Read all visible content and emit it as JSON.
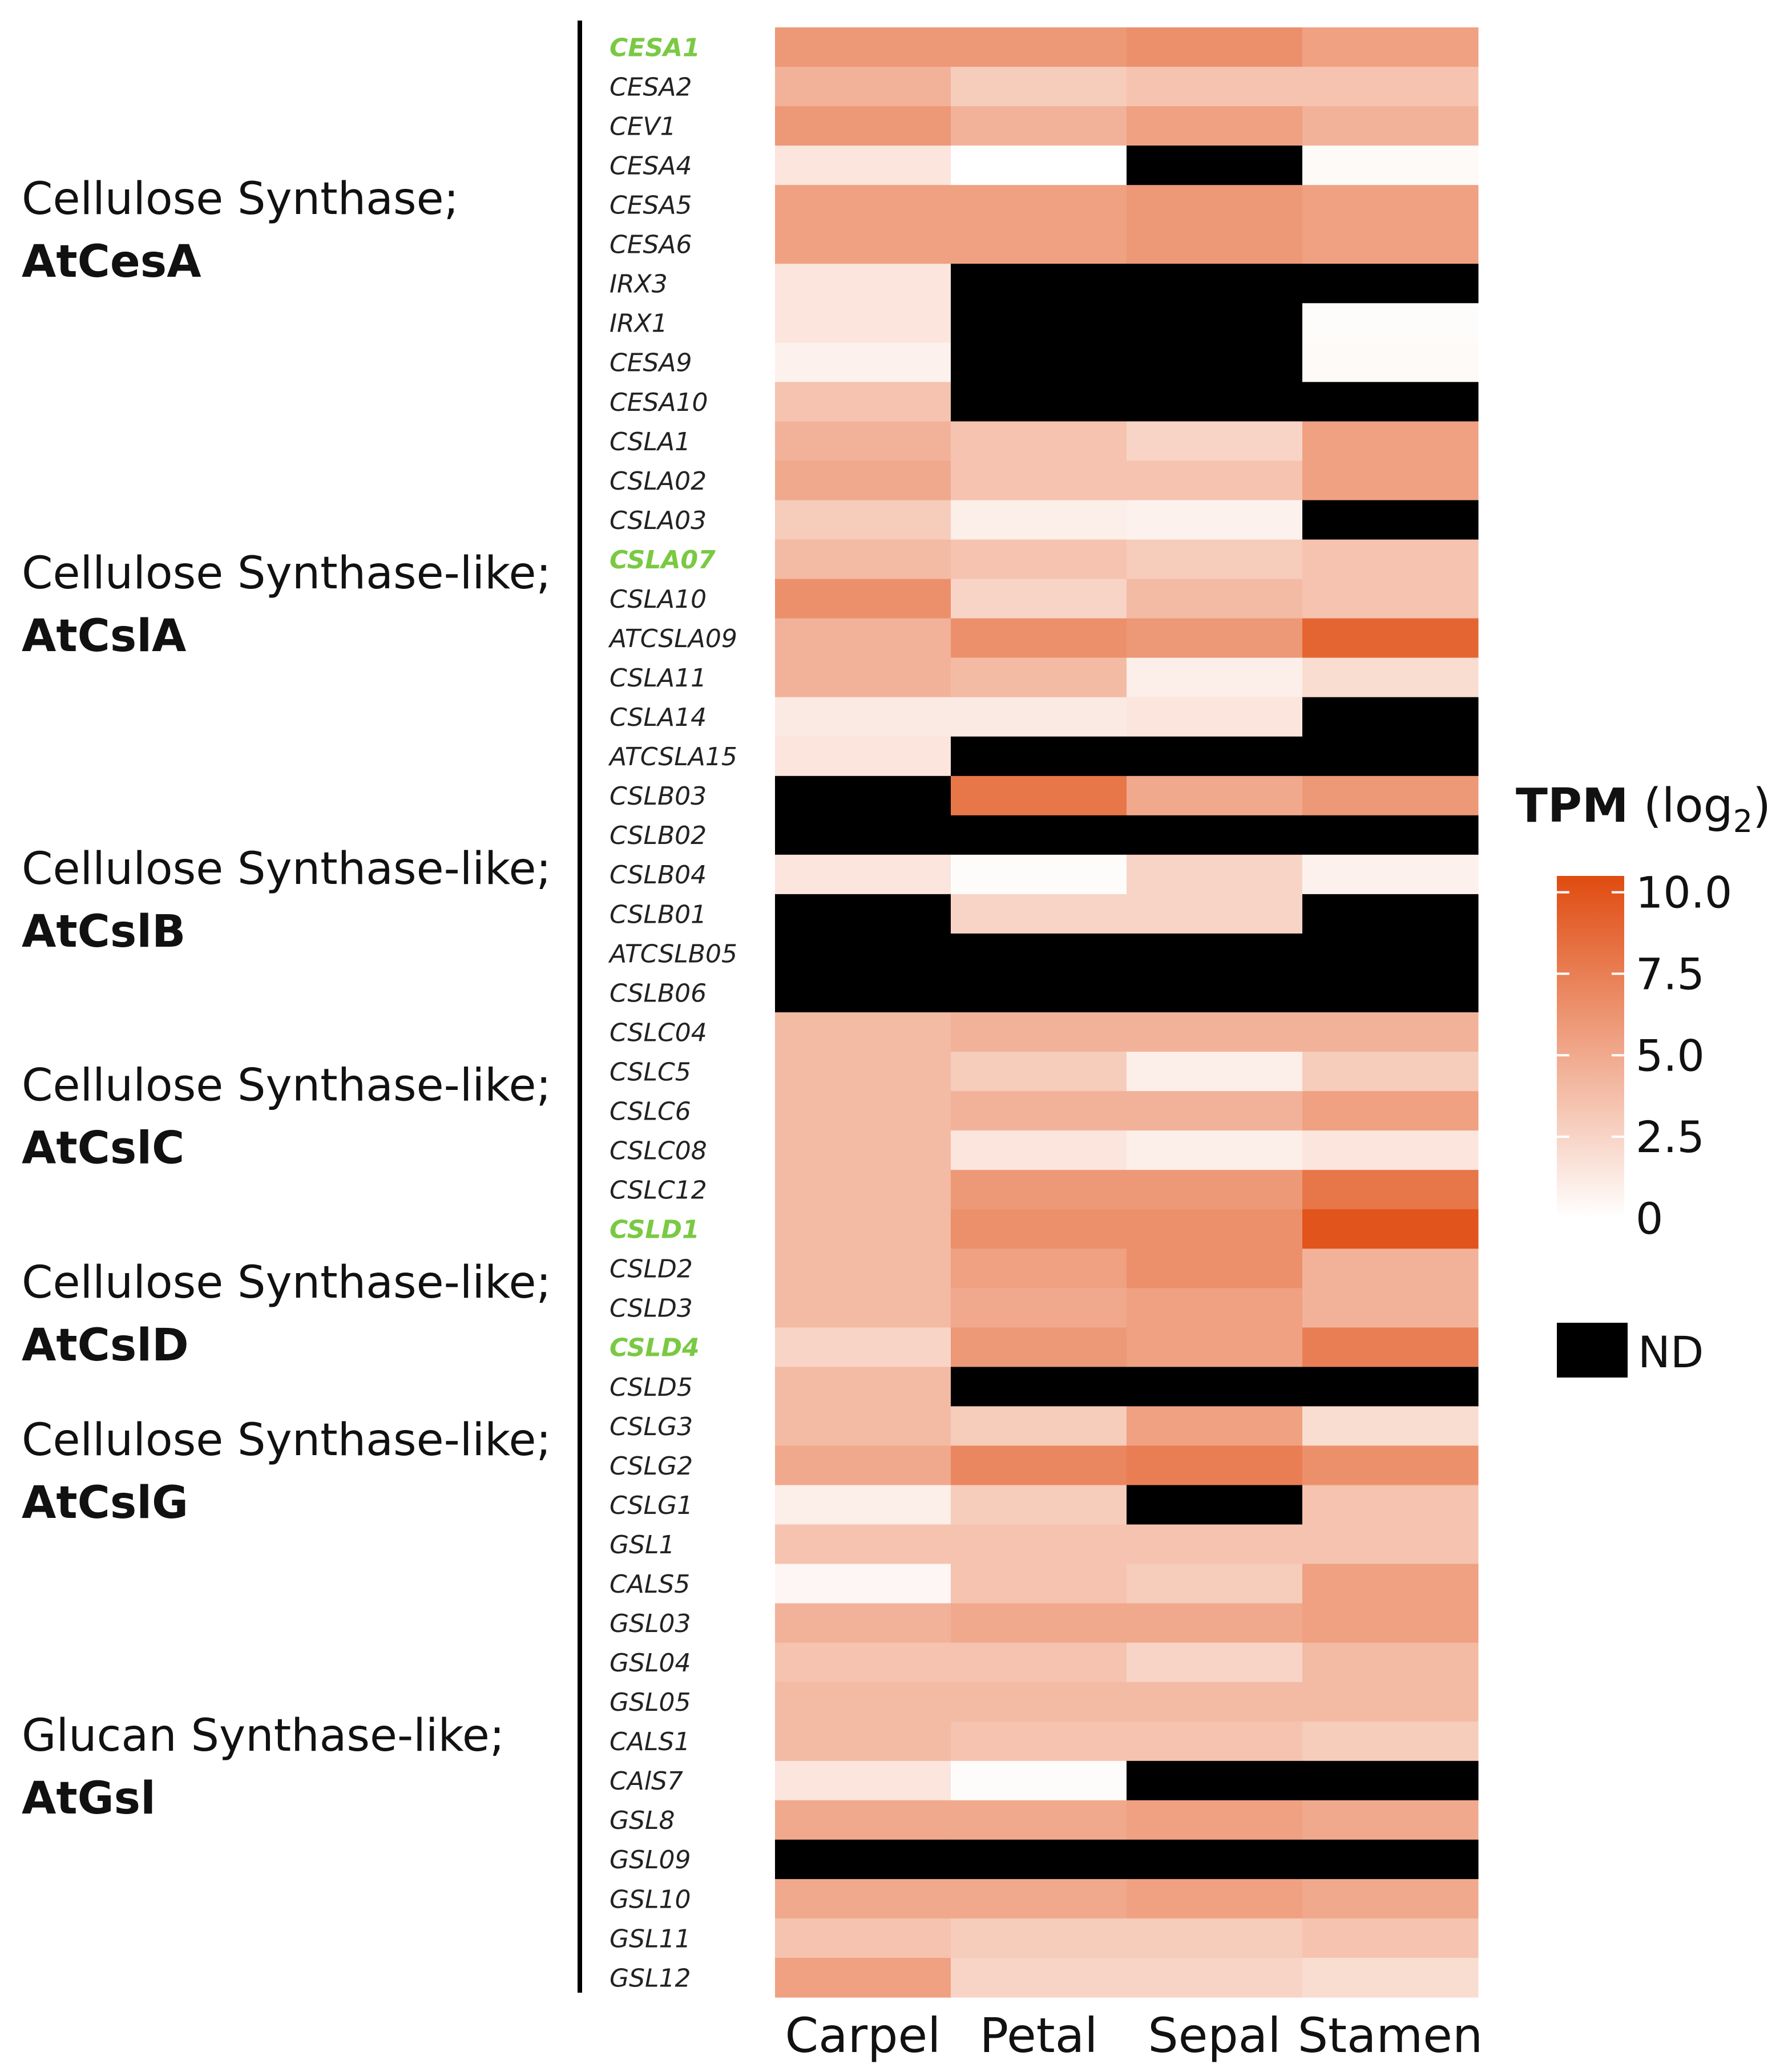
{
  "chart_data": {
    "type": "heatmap",
    "x_categories": [
      "Carpel",
      "Petal",
      "Sepal",
      "Stamen"
    ],
    "legend": {
      "title_main": "TPM",
      "title_suffix": " (log",
      "title_sub": "2",
      "title_close": ")",
      "ticks": [
        10.0,
        7.5,
        5.0,
        2.5,
        0
      ],
      "tick_labels": [
        "10.0",
        "7.5",
        "5.0",
        "2.5",
        "0"
      ],
      "range": [
        0,
        10.5
      ],
      "nd_label": "ND",
      "placement": "right"
    },
    "colors": {
      "low": "#ffffff",
      "high": "#e04b10",
      "nd": "#000000",
      "highlight_text": "#7ac943",
      "text": "#222222"
    },
    "groups": [
      {
        "line1": "Cellulose Synthase;",
        "line2": "AtCesA",
        "start": 0,
        "end": 9
      },
      {
        "line1": "Cellulose Synthase-like;",
        "line2": "AtCslA",
        "start": 10,
        "end": 18
      },
      {
        "line1": "Cellulose Synthase-like;",
        "line2": "AtCslB",
        "start": 19,
        "end": 24
      },
      {
        "line1": "Cellulose Synthase-like;",
        "line2": "AtCslC",
        "start": 25,
        "end": 29
      },
      {
        "line1": "Cellulose Synthase-like;",
        "line2": "AtCslD",
        "start": 30,
        "end": 34
      },
      {
        "line1": "Cellulose Synthase-like;",
        "line2": "AtCslG",
        "start": 35,
        "end": 37
      },
      {
        "line1": "Glucan Synthase-like;",
        "line2": "AtGsl",
        "start": 38,
        "end": 49
      }
    ],
    "rows": [
      {
        "gene": "CESA1",
        "highlight": true,
        "values": [
          6.0,
          6.0,
          6.5,
          5.5
        ]
      },
      {
        "gene": "CESA2",
        "highlight": false,
        "values": [
          4.5,
          3.0,
          3.5,
          3.5
        ]
      },
      {
        "gene": "CEV1",
        "highlight": false,
        "values": [
          6.0,
          4.5,
          5.5,
          4.5
        ]
      },
      {
        "gene": "CESA4",
        "highlight": false,
        "values": [
          1.5,
          0.0,
          null,
          0.3
        ]
      },
      {
        "gene": "CESA5",
        "highlight": false,
        "values": [
          5.5,
          5.5,
          6.0,
          5.5
        ]
      },
      {
        "gene": "CESA6",
        "highlight": false,
        "values": [
          5.5,
          5.5,
          6.0,
          5.5
        ]
      },
      {
        "gene": "IRX3",
        "highlight": false,
        "values": [
          1.5,
          null,
          null,
          null
        ]
      },
      {
        "gene": "IRX1",
        "highlight": false,
        "values": [
          1.5,
          null,
          null,
          0.2
        ]
      },
      {
        "gene": "CESA9",
        "highlight": false,
        "values": [
          0.8,
          null,
          null,
          0.3
        ]
      },
      {
        "gene": "CESA10",
        "highlight": false,
        "values": [
          3.5,
          null,
          null,
          null
        ]
      },
      {
        "gene": "CSLA1",
        "highlight": false,
        "values": [
          4.5,
          3.5,
          2.5,
          5.5
        ]
      },
      {
        "gene": "CSLA02",
        "highlight": false,
        "values": [
          5.0,
          3.5,
          3.5,
          5.5
        ]
      },
      {
        "gene": "CSLA03",
        "highlight": false,
        "values": [
          3.0,
          1.0,
          0.8,
          null
        ]
      },
      {
        "gene": "CSLA07",
        "highlight": true,
        "values": [
          4.0,
          3.5,
          3.0,
          3.5
        ]
      },
      {
        "gene": "CSLA10",
        "highlight": false,
        "values": [
          6.5,
          2.5,
          4.0,
          3.5
        ]
      },
      {
        "gene": "ATCSLA09",
        "highlight": false,
        "values": [
          4.5,
          6.5,
          6.0,
          9.0
        ]
      },
      {
        "gene": "CSLA11",
        "highlight": false,
        "values": [
          4.5,
          4.0,
          1.0,
          2.0
        ]
      },
      {
        "gene": "CSLA14",
        "highlight": false,
        "values": [
          1.2,
          1.2,
          1.5,
          null
        ]
      },
      {
        "gene": "ATCSLA15",
        "highlight": false,
        "values": [
          1.5,
          null,
          null,
          null
        ]
      },
      {
        "gene": "CSLB03",
        "highlight": false,
        "values": [
          null,
          8.0,
          5.0,
          6.0
        ]
      },
      {
        "gene": "CSLB02",
        "highlight": false,
        "values": [
          null,
          null,
          null,
          null
        ]
      },
      {
        "gene": "CSLB04",
        "highlight": false,
        "values": [
          1.5,
          0.2,
          2.5,
          0.8
        ]
      },
      {
        "gene": "CSLB01",
        "highlight": false,
        "values": [
          null,
          2.5,
          2.5,
          null
        ]
      },
      {
        "gene": "ATCSLB05",
        "highlight": false,
        "values": [
          null,
          null,
          null,
          null
        ]
      },
      {
        "gene": "CSLB06",
        "highlight": false,
        "values": [
          null,
          null,
          null,
          null
        ]
      },
      {
        "gene": "CSLC04",
        "highlight": false,
        "values": [
          4.0,
          4.5,
          4.5,
          4.5
        ]
      },
      {
        "gene": "CSLC5",
        "highlight": false,
        "values": [
          4.0,
          3.0,
          1.0,
          3.0
        ]
      },
      {
        "gene": "CSLC6",
        "highlight": false,
        "values": [
          4.0,
          4.5,
          4.5,
          5.5
        ]
      },
      {
        "gene": "CSLC08",
        "highlight": false,
        "values": [
          4.0,
          1.5,
          1.0,
          1.5
        ]
      },
      {
        "gene": "CSLC12",
        "highlight": false,
        "values": [
          4.0,
          6.0,
          6.0,
          8.0
        ]
      },
      {
        "gene": "CSLD1",
        "highlight": true,
        "values": [
          4.0,
          6.5,
          6.5,
          10.0
        ]
      },
      {
        "gene": "CSLD2",
        "highlight": false,
        "values": [
          4.0,
          5.5,
          6.5,
          4.5
        ]
      },
      {
        "gene": "CSLD3",
        "highlight": false,
        "values": [
          4.0,
          5.0,
          5.5,
          4.5
        ]
      },
      {
        "gene": "CSLD4",
        "highlight": true,
        "values": [
          2.5,
          6.0,
          5.5,
          7.5
        ]
      },
      {
        "gene": "CSLD5",
        "highlight": false,
        "values": [
          4.0,
          null,
          null,
          null
        ]
      },
      {
        "gene": "CSLG3",
        "highlight": false,
        "values": [
          4.0,
          3.0,
          5.5,
          2.0
        ]
      },
      {
        "gene": "CSLG2",
        "highlight": false,
        "values": [
          5.0,
          7.0,
          7.5,
          6.5
        ]
      },
      {
        "gene": "CSLG1",
        "highlight": false,
        "values": [
          1.0,
          3.0,
          null,
          3.5
        ]
      },
      {
        "gene": "GSL1",
        "highlight": false,
        "values": [
          3.5,
          3.5,
          3.5,
          3.5
        ]
      },
      {
        "gene": "CALS5",
        "highlight": false,
        "values": [
          0.5,
          3.5,
          3.0,
          5.5
        ]
      },
      {
        "gene": "GSL03",
        "highlight": false,
        "values": [
          4.5,
          5.0,
          5.0,
          5.5
        ]
      },
      {
        "gene": "GSL04",
        "highlight": false,
        "values": [
          3.5,
          3.5,
          2.5,
          4.0
        ]
      },
      {
        "gene": "GSL05",
        "highlight": false,
        "values": [
          4.0,
          4.0,
          4.0,
          4.0
        ]
      },
      {
        "gene": "CALS1",
        "highlight": false,
        "values": [
          4.0,
          3.5,
          3.5,
          3.0
        ]
      },
      {
        "gene": "CAlS7",
        "highlight": false,
        "values": [
          1.5,
          0.2,
          null,
          null
        ]
      },
      {
        "gene": "GSL8",
        "highlight": false,
        "values": [
          5.0,
          5.0,
          5.5,
          5.0
        ]
      },
      {
        "gene": "GSL09",
        "highlight": false,
        "values": [
          null,
          null,
          null,
          null
        ]
      },
      {
        "gene": "GSL10",
        "highlight": false,
        "values": [
          5.0,
          5.0,
          5.5,
          5.0
        ]
      },
      {
        "gene": "GSL11",
        "highlight": false,
        "values": [
          3.5,
          3.0,
          3.0,
          3.5
        ]
      },
      {
        "gene": "GSL12",
        "highlight": false,
        "values": [
          5.5,
          2.5,
          2.5,
          2.0
        ]
      }
    ]
  }
}
